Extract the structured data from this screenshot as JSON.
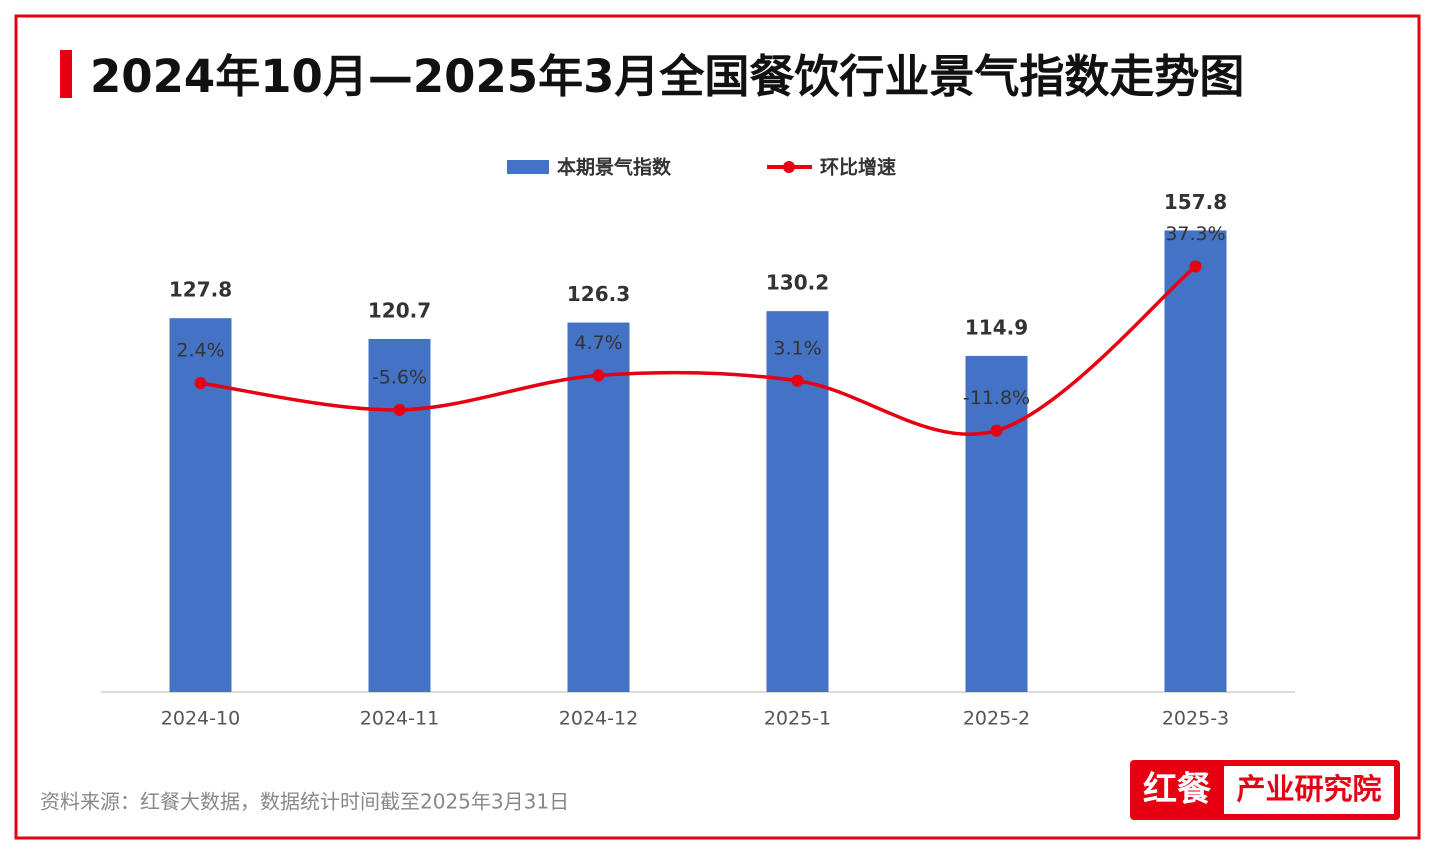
{
  "chart_data": {
    "type": "bar",
    "title": "2024年10月—2025年3月全国餐饮行业景气指数走势图",
    "categories": [
      "2024-10",
      "2024-11",
      "2024-12",
      "2025-1",
      "2025-2",
      "2025-3"
    ],
    "series": [
      {
        "name": "本期景气指数",
        "type": "bar",
        "color": "#4472c4",
        "values": [
          127.8,
          120.7,
          126.3,
          130.2,
          114.9,
          157.8
        ]
      },
      {
        "name": "环比增速",
        "type": "line",
        "axis": "y2",
        "color": "#e60012",
        "values": [
          2.4,
          -5.6,
          4.7,
          3.1,
          -11.8,
          37.3
        ],
        "value_labels": [
          "2.4%",
          "-5.6%",
          "4.7%",
          "3.1%",
          "-11.8%",
          "37.3%"
        ]
      }
    ],
    "ylim": [
      0,
      160
    ],
    "y2lim": [
      -90,
      50
    ],
    "grid": false,
    "legend": "top"
  },
  "source": "资料来源：红餐大数据，数据统计时间截至2025年3月31日",
  "logo": {
    "brand": "红餐",
    "text": "产业研究院"
  }
}
